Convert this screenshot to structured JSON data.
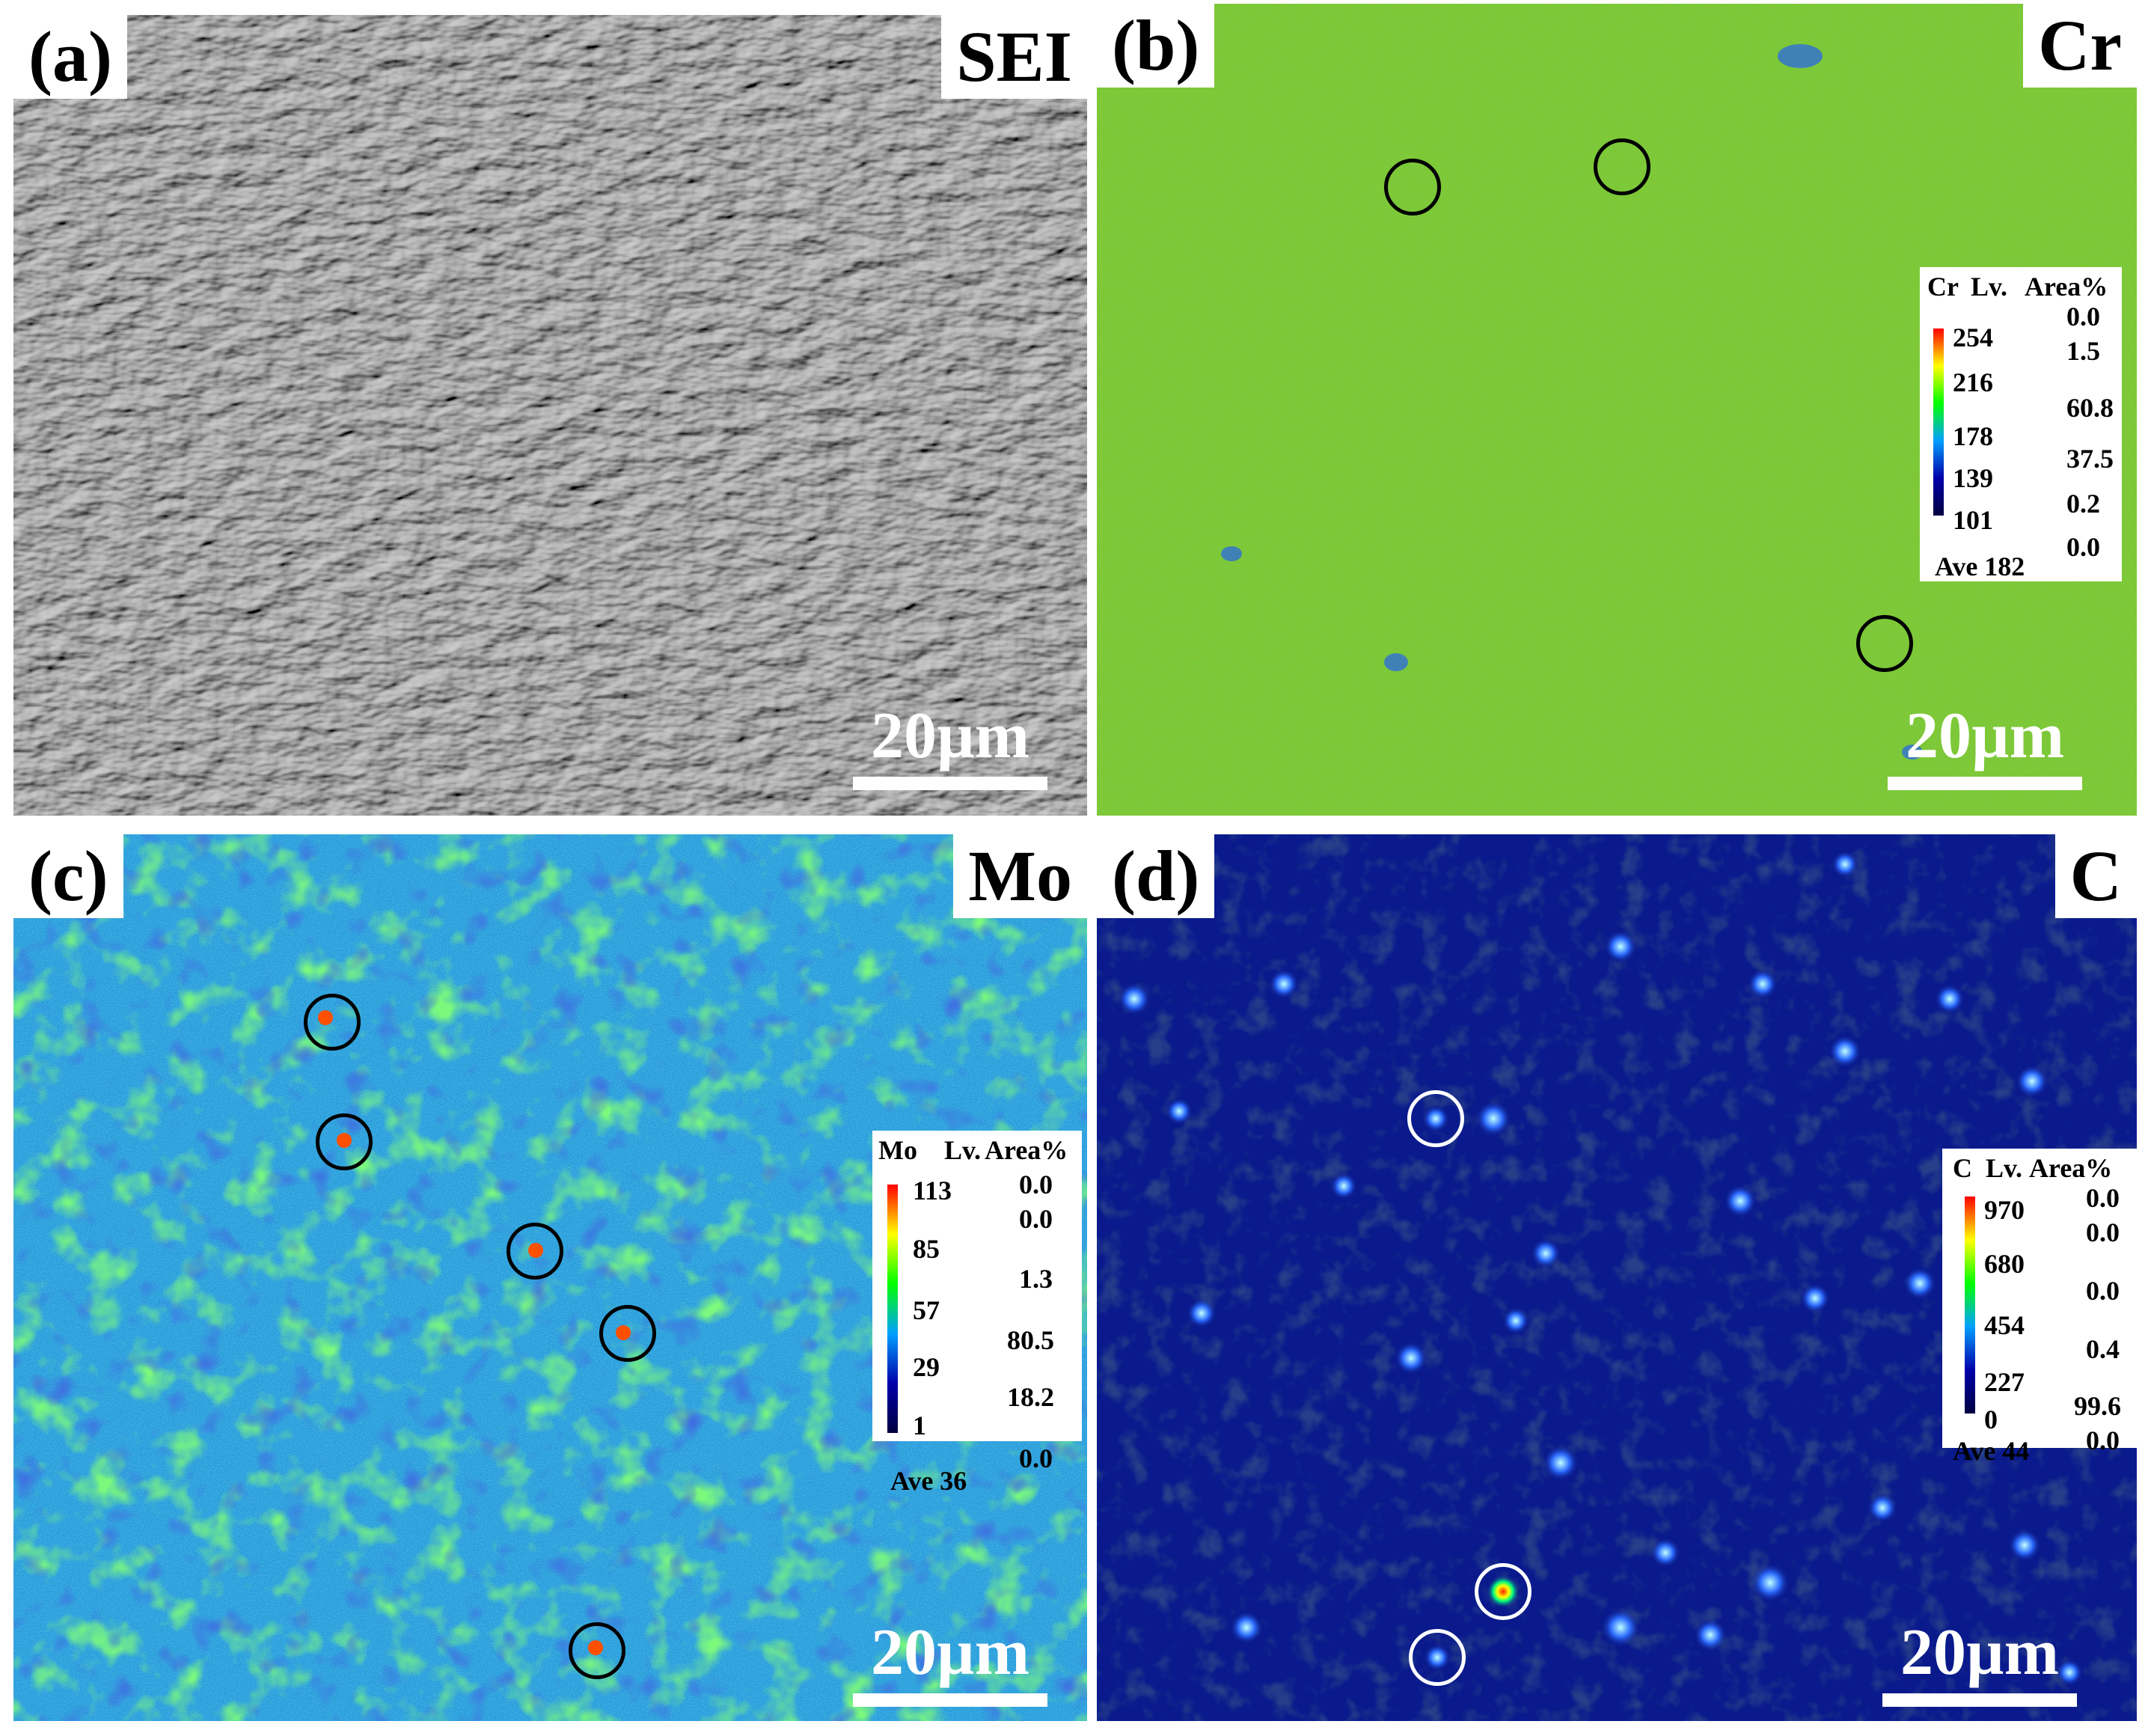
{
  "panels": [
    {
      "label": "(a)",
      "element": "SEI",
      "scale_bar": "20µm"
    },
    {
      "label": "(b)",
      "element": "Cr",
      "scale_bar": "20µm",
      "legend": {
        "element": "Cr",
        "col_lv": "Lv.",
        "col_area": "Area%",
        "levels": [
          "254",
          "216",
          "178",
          "139",
          "101"
        ],
        "areas": [
          "0.0",
          "1.5",
          "60.8",
          "37.5",
          "0.2",
          "0.0"
        ],
        "average": "Ave 182"
      }
    },
    {
      "label": "(c)",
      "element": "Mo",
      "scale_bar": "20µm",
      "legend": {
        "element": "Mo",
        "col_lv": "Lv.",
        "col_area": "Area%",
        "levels": [
          "113",
          "85",
          "57",
          "29",
          "1"
        ],
        "areas": [
          "0.0",
          "0.0",
          "1.3",
          "80.5",
          "18.2",
          "0.0"
        ],
        "average": "Ave 36"
      }
    },
    {
      "label": "(d)",
      "element": "C",
      "scale_bar": "20µm",
      "legend": {
        "element": "C",
        "col_lv": "Lv.",
        "col_area": "Area%",
        "levels": [
          "970",
          "680",
          "454",
          "227",
          "0"
        ],
        "areas": [
          "0.0",
          "0.0",
          "0.0",
          "0.4",
          "99.6",
          "0.0"
        ],
        "average": "Ave 44"
      }
    }
  ],
  "colors": {
    "sei_base": "#4a4a4a",
    "cr_base": "#7cc93a",
    "mo_base": "#2a9fdc",
    "c_base": "#0a1a8c",
    "colorbar": [
      "#ff0000",
      "#ffff00",
      "#00ff00",
      "#00a0ff",
      "#0000aa",
      "#000040"
    ],
    "marker_dark": "#000000",
    "marker_light": "#ffffff"
  }
}
